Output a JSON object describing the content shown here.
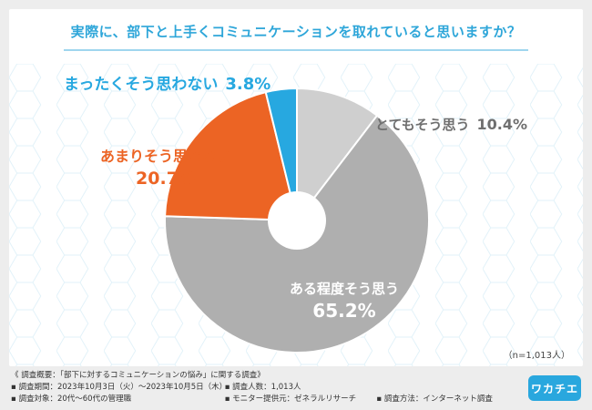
{
  "title": "実際に、部下と上手くコミュニケーションを取れていると思いますか？",
  "sample_size": "（n=1,013人）",
  "colors": {
    "accent": "#2ea6d9",
    "slice_1": "#cfcfcf",
    "slice_2": "#afafaf",
    "slice_3": "#ec6424",
    "slice_4": "#27a8e0"
  },
  "chart_data": {
    "type": "pie",
    "title": "実際に、部下と上手くコミュニケーションを取れていると思いますか？",
    "donut": true,
    "slices": [
      {
        "label": "とてもそう思う",
        "value": 10.4,
        "value_label": "10.4%",
        "color": "#cfcfcf",
        "text_color": "#6f6f6f"
      },
      {
        "label": "ある程度そう思う",
        "value": 65.2,
        "value_label": "65.2%",
        "color": "#afafaf",
        "text_color": "#ffffff"
      },
      {
        "label": "あまりそう思わない",
        "value": 20.7,
        "value_label": "20.7%",
        "color": "#ec6424",
        "text_color": "#ec6424"
      },
      {
        "label": "まったくそう思わない",
        "value": 3.8,
        "value_label": "3.8%",
        "color": "#27a8e0",
        "text_color": "#27a8e0"
      }
    ]
  },
  "survey": {
    "heading": "《 調査概要：「部下に対するコミュニケーションの悩み」に関する調査》",
    "period": "▪ 調査期間：2023年10月3日（火）〜2023年10月5日（木）",
    "count": "▪ 調査人数：1,013人",
    "target": "▪ 調査対象：20代〜60代の管理職",
    "provider": "▪ モニター提供元：ゼネラルリサーチ",
    "method": "▪ 調査方法：インターネット調査"
  },
  "logo_text": "ワカチエ"
}
